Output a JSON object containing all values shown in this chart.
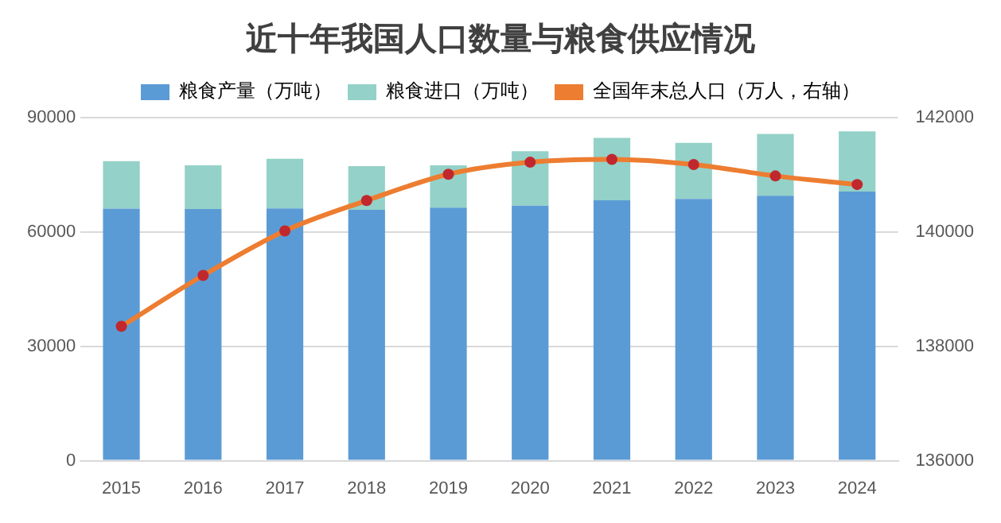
{
  "chart_data": {
    "type": "bar",
    "title": "近十年我国人口数量与粮食供应情况",
    "categories": [
      "2015",
      "2016",
      "2017",
      "2018",
      "2019",
      "2020",
      "2021",
      "2022",
      "2023",
      "2024"
    ],
    "stacked": true,
    "series": [
      {
        "name": "粮食产量（万吨）",
        "color": "#5b9bd5",
        "values": [
          66100,
          66000,
          66200,
          65800,
          66400,
          66900,
          68300,
          68700,
          69500,
          70600
        ]
      },
      {
        "name": "粮食进口（万吨）",
        "color": "#94d1c8",
        "values": [
          12500,
          11500,
          13000,
          11500,
          11100,
          14300,
          16400,
          14700,
          16200,
          15800
        ]
      },
      {
        "name": "全国年末总人口（万人，右轴）",
        "type": "line",
        "axis": "y2",
        "color": "#ed7d31",
        "values": [
          138350,
          139240,
          140020,
          140550,
          141010,
          141220,
          141270,
          141180,
          140980,
          140830
        ]
      }
    ],
    "ylim": [
      0,
      90000
    ],
    "yticks": [
      0,
      30000,
      60000,
      90000
    ],
    "y2lim": [
      136000,
      142000
    ],
    "y2ticks": [
      136000,
      138000,
      140000,
      142000
    ],
    "grid": "y",
    "legend": "top",
    "marker": "circle"
  }
}
